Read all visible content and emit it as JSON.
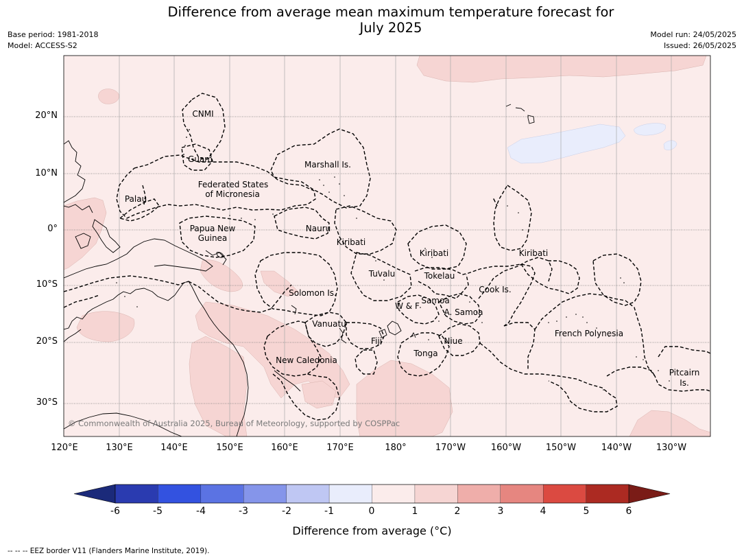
{
  "header": {
    "title_line1": "Difference from average mean maximum temperature forecast for",
    "title_line2": "July 2025",
    "base_period": "Base period: 1981-2018",
    "model": "Model: ACCESS-S2",
    "model_run": "Model run: 24/05/2025",
    "issued": "Issued: 26/05/2025"
  },
  "axes": {
    "lat_labels": [
      "20°N",
      "10°N",
      "0°",
      "10°S",
      "20°S",
      "30°S"
    ],
    "lon_labels": [
      "120°E",
      "130°E",
      "140°E",
      "150°E",
      "160°E",
      "170°E",
      "180°",
      "170°W",
      "160°W",
      "150°W",
      "140°W",
      "130°W"
    ]
  },
  "regions": [
    {
      "id": "cnmi",
      "text": "CNMI"
    },
    {
      "id": "guam",
      "text": "Guam"
    },
    {
      "id": "marshall",
      "text": "Marshall Is."
    },
    {
      "id": "fsm1",
      "text": "Federated States"
    },
    {
      "id": "fsm2",
      "text": "of Micronesia"
    },
    {
      "id": "palau",
      "text": "Palau"
    },
    {
      "id": "png1",
      "text": "Papua New"
    },
    {
      "id": "png2",
      "text": "Guinea"
    },
    {
      "id": "nauru",
      "text": "Nauru"
    },
    {
      "id": "kiribati_w",
      "text": "Kiribati"
    },
    {
      "id": "kiribati_c",
      "text": "Kiribati"
    },
    {
      "id": "kiribati_e",
      "text": "Kiribati"
    },
    {
      "id": "tuvalu",
      "text": "Tuvalu"
    },
    {
      "id": "tokelau",
      "text": "Tokelau"
    },
    {
      "id": "cook",
      "text": "Cook Is."
    },
    {
      "id": "solomon",
      "text": "Solomon Is."
    },
    {
      "id": "samoa",
      "text": "Samoa"
    },
    {
      "id": "wf",
      "text": "W & F"
    },
    {
      "id": "asamoa",
      "text": "A. Samoa"
    },
    {
      "id": "vanuatu",
      "text": "Vanuatu"
    },
    {
      "id": "fiji",
      "text": "Fiji"
    },
    {
      "id": "niue",
      "text": "Niue"
    },
    {
      "id": "frpoly",
      "text": "French Polynesia"
    },
    {
      "id": "tonga",
      "text": "Tonga"
    },
    {
      "id": "newcal",
      "text": "New Caledonia"
    },
    {
      "id": "pitcairn1",
      "text": "Pitcairn"
    },
    {
      "id": "pitcairn2",
      "text": "Is."
    }
  ],
  "copyright": "© Commonwealth of Australia 2025, Bureau of Meteorology, supported by COSPPac",
  "colorbar": {
    "ticks": [
      "-6",
      "-5",
      "-4",
      "-3",
      "-2",
      "-1",
      "0",
      "1",
      "2",
      "3",
      "4",
      "5",
      "6"
    ],
    "colors": [
      "#2a3bb0",
      "#3352e0",
      "#5b73e3",
      "#8595ea",
      "#bfc7f3",
      "#e9edfc",
      "#fbeceb",
      "#f6d5d3",
      "#efaeaa",
      "#e68680",
      "#db4a41",
      "#ac2a22"
    ],
    "low_color": "#1b2a7a",
    "high_color": "#7a1c17",
    "label": "Difference from average (°C)"
  },
  "map_colors": {
    "background": "#fbeceb",
    "warm_patch": "#f6d5d3",
    "cool_patch": "#e9edfc"
  },
  "footnote": "--  --  -- EEZ border V11 (Flanders Marine Institute, 2019)."
}
